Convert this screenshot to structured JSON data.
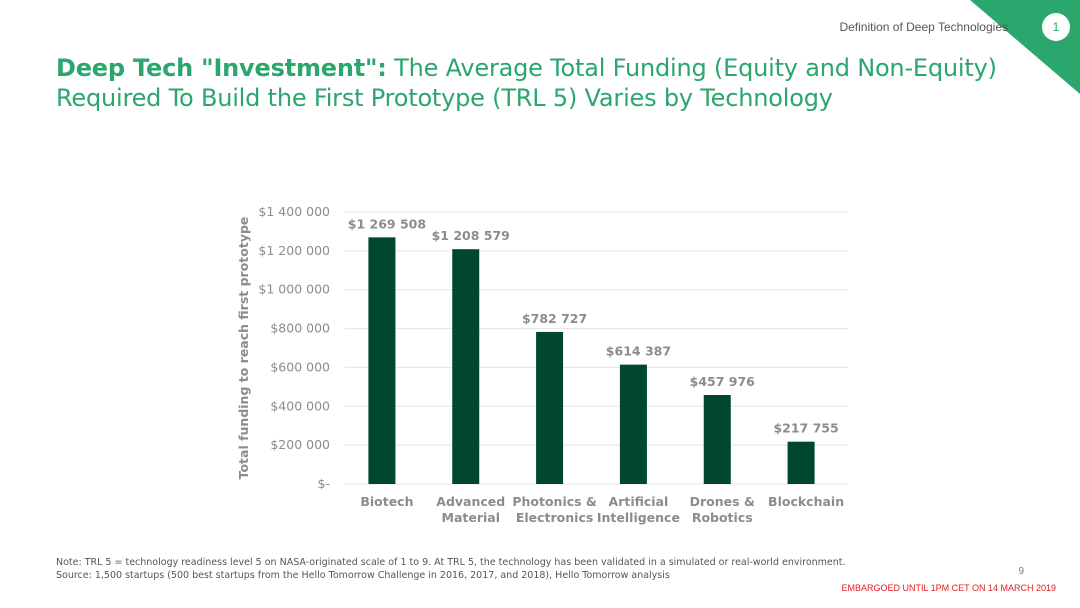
{
  "header": {
    "section_label": "Definition of Deep Technologies",
    "section_number": "1",
    "accent_color": "#2ba66d"
  },
  "title": {
    "bold": "Deep Tech \"Investment\":",
    "rest": " The Average Total Funding (Equity and Non-Equity) Required To Build the First Prototype (TRL 5) Varies by Technology"
  },
  "chart_data": {
    "type": "bar",
    "categories": [
      [
        "Biotech"
      ],
      [
        "Advanced",
        "Material"
      ],
      [
        "Photonics &",
        "Electronics"
      ],
      [
        "Artificial",
        "Intelligence"
      ],
      [
        "Drones &",
        "Robotics"
      ],
      [
        "Blockchain"
      ]
    ],
    "values": [
      1269508,
      1208579,
      782727,
      614387,
      457976,
      217755
    ],
    "data_labels": [
      "$1 269 508",
      "$1 208 579",
      "$782 727",
      "$614 387",
      "$457 976",
      "$217 755"
    ],
    "ylabel": "Total funding to reach first prototype",
    "ylim": [
      0,
      1400000
    ],
    "yticks": [
      0,
      200000,
      400000,
      600000,
      800000,
      1000000,
      1200000,
      1400000
    ],
    "ytick_labels": [
      "$-",
      "$200 000",
      "$400 000",
      "$600 000",
      "$800 000",
      "$1 000 000",
      "$1 200 000",
      "$1 400 000"
    ],
    "grid": true,
    "bar_color": "#00472e"
  },
  "footer": {
    "note": "Note: TRL 5 = technology readiness level 5 on NASA-originated scale of 1 to 9.  At TRL 5, the technology has been validated in a simulated or real-world environment.",
    "source": "Source: 1,500 startups (500 best startups from the Hello Tomorrow Challenge in 2016, 2017, and 2018), Hello Tomorrow analysis",
    "page_number": "9",
    "embargo": "EMBARGOED UNTIL 1PM CET ON 14 MARCH 2019"
  }
}
